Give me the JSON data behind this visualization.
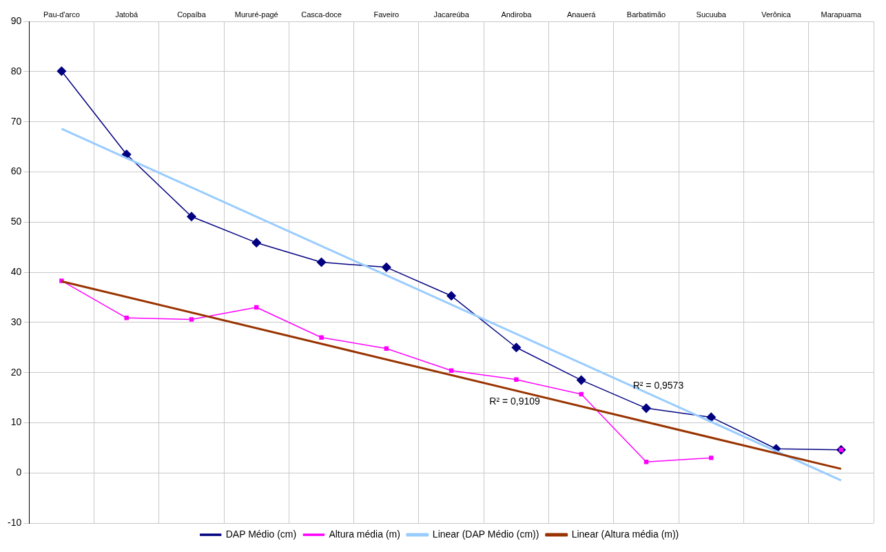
{
  "chart_data": {
    "type": "line",
    "categories": [
      "Pau-d'arco",
      "Jatobá",
      "Copaíba",
      "Mururé-pagé",
      "Casca-doce",
      "Faveiro",
      "Jacareúba",
      "Andiroba",
      "Anauerá",
      "Barbatimão",
      "Sucuuba",
      "Verônica",
      "Marapuama"
    ],
    "series": [
      {
        "name": "DAP Médio (cm)",
        "color": "#000080",
        "marker": "diamond",
        "values": [
          80.1,
          63.5,
          51.1,
          45.9,
          42.0,
          41.0,
          35.3,
          25.0,
          18.5,
          12.9,
          11.1,
          4.8,
          4.6
        ]
      },
      {
        "name": "Altura média (m)",
        "color": "#ff00ff",
        "marker": "square",
        "values": [
          38.3,
          30.9,
          30.6,
          33.0,
          27.0,
          24.8,
          20.4,
          18.6,
          15.7,
          2.2,
          3.0,
          null,
          4.6
        ]
      },
      {
        "name": "Linear (DAP Médio (cm))",
        "color": "#99ccff",
        "marker": "none",
        "x": [
          "Pau-d'arco",
          "Marapuama"
        ],
        "values": [
          68.6,
          -1.5
        ]
      },
      {
        "name": "Linear (Altura média (m))",
        "color": "#993300",
        "marker": "none",
        "x": [
          "Pau-d'arco",
          "Marapuama"
        ],
        "values": [
          38.2,
          0.8
        ]
      }
    ],
    "ylim": [
      -10,
      90
    ],
    "yticks": [
      -10,
      0,
      10,
      20,
      30,
      40,
      50,
      60,
      70,
      80,
      90
    ],
    "grid": true,
    "legend": "bottom",
    "annotations": [
      "R² = 0,9573",
      "R² = 0,9109"
    ]
  }
}
